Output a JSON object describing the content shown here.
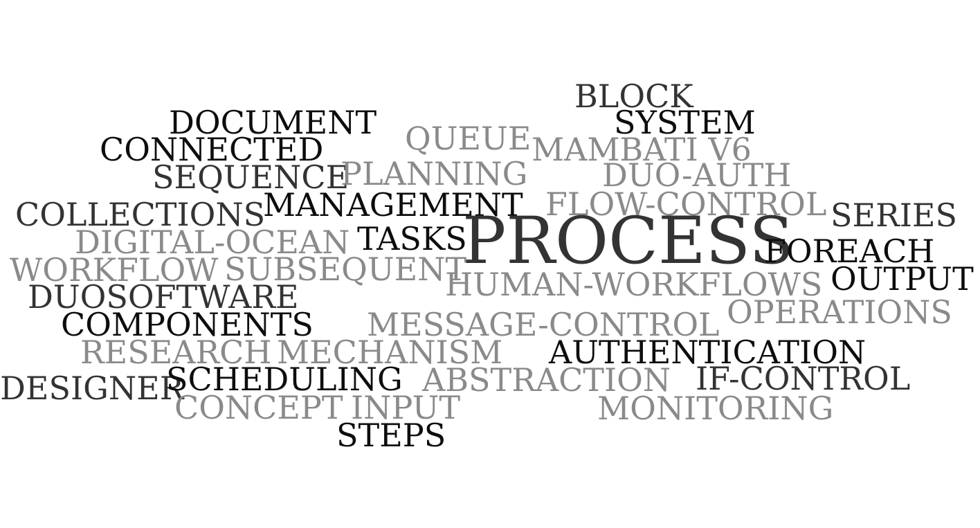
{
  "colors": {
    "background": "#ffffff",
    "black": "#0d0d0d",
    "dark": "#333333",
    "gray": "#8a8a8a"
  },
  "words": [
    {
      "id": "block",
      "text": "BLOCK",
      "shade": "dark"
    },
    {
      "id": "document",
      "text": "DOCUMENT",
      "shade": "black"
    },
    {
      "id": "system",
      "text": "SYSTEM",
      "shade": "black"
    },
    {
      "id": "queue",
      "text": "QUEUE",
      "shade": "gray"
    },
    {
      "id": "connected",
      "text": "CONNECTED",
      "shade": "black"
    },
    {
      "id": "mambati",
      "text": "MAMBATI V6",
      "shade": "gray"
    },
    {
      "id": "sequence",
      "text": "SEQUENCE",
      "shade": "dark"
    },
    {
      "id": "planning",
      "text": "PLANNING",
      "shade": "gray"
    },
    {
      "id": "duoauth",
      "text": "DUO-AUTH",
      "shade": "gray"
    },
    {
      "id": "collections",
      "text": "COLLECTIONS",
      "shade": "dark"
    },
    {
      "id": "management",
      "text": "MANAGEMENT",
      "shade": "black"
    },
    {
      "id": "flowcontrol",
      "text": "FLOW-CONTROL",
      "shade": "gray"
    },
    {
      "id": "series",
      "text": "SERIES",
      "shade": "dark"
    },
    {
      "id": "digitalocean",
      "text": "DIGITAL-OCEAN",
      "shade": "gray"
    },
    {
      "id": "tasks",
      "text": "TASKS",
      "shade": "black"
    },
    {
      "id": "process",
      "text": "PROCESS",
      "shade": "dark"
    },
    {
      "id": "foreach",
      "text": "FOREACH",
      "shade": "black"
    },
    {
      "id": "workflow",
      "text": "WORKFLOW",
      "shade": "gray"
    },
    {
      "id": "subsequent",
      "text": "SUBSEQUENT",
      "shade": "gray"
    },
    {
      "id": "humanworkflows",
      "text": "HUMAN-WORKFLOWS",
      "shade": "gray"
    },
    {
      "id": "output",
      "text": "OUTPUT",
      "shade": "black"
    },
    {
      "id": "duosoftware",
      "text": "DUOSOFTWARE",
      "shade": "dark"
    },
    {
      "id": "operations",
      "text": "OPERATIONS",
      "shade": "gray"
    },
    {
      "id": "components",
      "text": "COMPONENTS",
      "shade": "black"
    },
    {
      "id": "messagecontrol",
      "text": "MESSAGE-CONTROL",
      "shade": "gray"
    },
    {
      "id": "research",
      "text": "RESEARCH",
      "shade": "gray"
    },
    {
      "id": "mechanism",
      "text": "MECHANISM",
      "shade": "gray"
    },
    {
      "id": "authentication",
      "text": "AUTHENTICATION",
      "shade": "black"
    },
    {
      "id": "designer",
      "text": "DESIGNER",
      "shade": "dark"
    },
    {
      "id": "scheduling",
      "text": "SCHEDULING",
      "shade": "black"
    },
    {
      "id": "abstraction",
      "text": "ABSTRACTION",
      "shade": "gray"
    },
    {
      "id": "ifcontrol",
      "text": "IF-CONTROL",
      "shade": "dark"
    },
    {
      "id": "concept",
      "text": "CONCEPT",
      "shade": "gray"
    },
    {
      "id": "input",
      "text": "INPUT",
      "shade": "gray"
    },
    {
      "id": "monitoring",
      "text": "MONITORING",
      "shade": "gray"
    },
    {
      "id": "steps",
      "text": "STEPS",
      "shade": "black"
    }
  ]
}
